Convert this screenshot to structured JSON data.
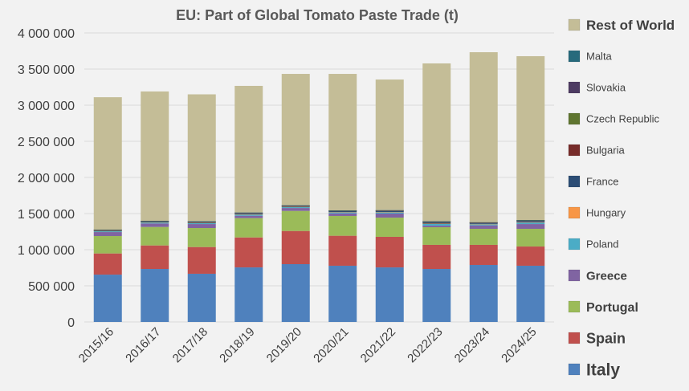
{
  "chart_data": {
    "type": "bar",
    "stacked": true,
    "title": "EU: Part of Global Tomato Paste Trade (t)",
    "xlabel": "",
    "ylabel": "",
    "ylim": [
      0,
      4000000
    ],
    "yticks": [
      0,
      500000,
      1000000,
      1500000,
      2000000,
      2500000,
      3000000,
      3500000,
      4000000
    ],
    "ytick_labels": [
      "0",
      "500 000",
      "1 000 000",
      "1 500 000",
      "2 000 000",
      "2 500 000",
      "3 000 000",
      "3 500 000",
      "4 000 000"
    ],
    "grid": true,
    "legend_position": "right",
    "categories": [
      "2015/16",
      "2016/17",
      "2017/18",
      "2018/19",
      "2019/20",
      "2020/21",
      "2021/22",
      "2022/23",
      "2023/24",
      "2024/25"
    ],
    "series": [
      {
        "name": "Italy",
        "color": "#4f81bd",
        "values": [
          655000,
          733000,
          667000,
          755000,
          800000,
          778000,
          755000,
          733000,
          789000,
          778000
        ]
      },
      {
        "name": "Spain",
        "color": "#c0504d",
        "values": [
          293000,
          326000,
          370000,
          415000,
          459000,
          415000,
          423000,
          334000,
          278000,
          266000
        ]
      },
      {
        "name": "Portugal",
        "color": "#9bbb59",
        "values": [
          241000,
          256000,
          263000,
          267000,
          278000,
          274000,
          266000,
          244000,
          222000,
          245000
        ]
      },
      {
        "name": "Greece",
        "color": "#8064a2",
        "values": [
          55000,
          48000,
          55000,
          33000,
          40000,
          35000,
          56000,
          22000,
          48000,
          66000
        ]
      },
      {
        "name": "Poland",
        "color": "#4bacc6",
        "values": [
          14000,
          15000,
          15000,
          18000,
          15000,
          17000,
          19000,
          25000,
          18000,
          22000
        ]
      },
      {
        "name": "Hungary",
        "color": "#f79646",
        "values": [
          2000,
          2000,
          2000,
          2000,
          2000,
          2000,
          3000,
          3000,
          2000,
          3000
        ]
      },
      {
        "name": "France",
        "color": "#2c4d75",
        "values": [
          10000,
          11000,
          12000,
          13000,
          11000,
          13000,
          14000,
          20000,
          13000,
          17000
        ]
      },
      {
        "name": "Bulgaria",
        "color": "#772c2a",
        "values": [
          3000,
          4000,
          4000,
          7000,
          4000,
          4000,
          5000,
          6000,
          4000,
          5000
        ]
      },
      {
        "name": "Czech Republic",
        "color": "#5f7530",
        "values": [
          2000,
          2000,
          2000,
          2000,
          2000,
          2000,
          3000,
          3000,
          3000,
          3000
        ]
      },
      {
        "name": "Slovakia",
        "color": "#4d3b62",
        "values": [
          2000,
          2000,
          2000,
          2000,
          2000,
          3000,
          3000,
          4000,
          3000,
          4000
        ]
      },
      {
        "name": "Malta",
        "color": "#276a7c",
        "values": [
          1000,
          1000,
          1000,
          1000,
          2000,
          1000,
          1000,
          2000,
          1000,
          2000
        ]
      },
      {
        "name": "Rest of World",
        "color": "#c4bd97",
        "values": [
          1832000,
          1790000,
          1757000,
          1752000,
          1818000,
          1889000,
          1807000,
          2182000,
          2352000,
          2267000
        ]
      }
    ]
  }
}
